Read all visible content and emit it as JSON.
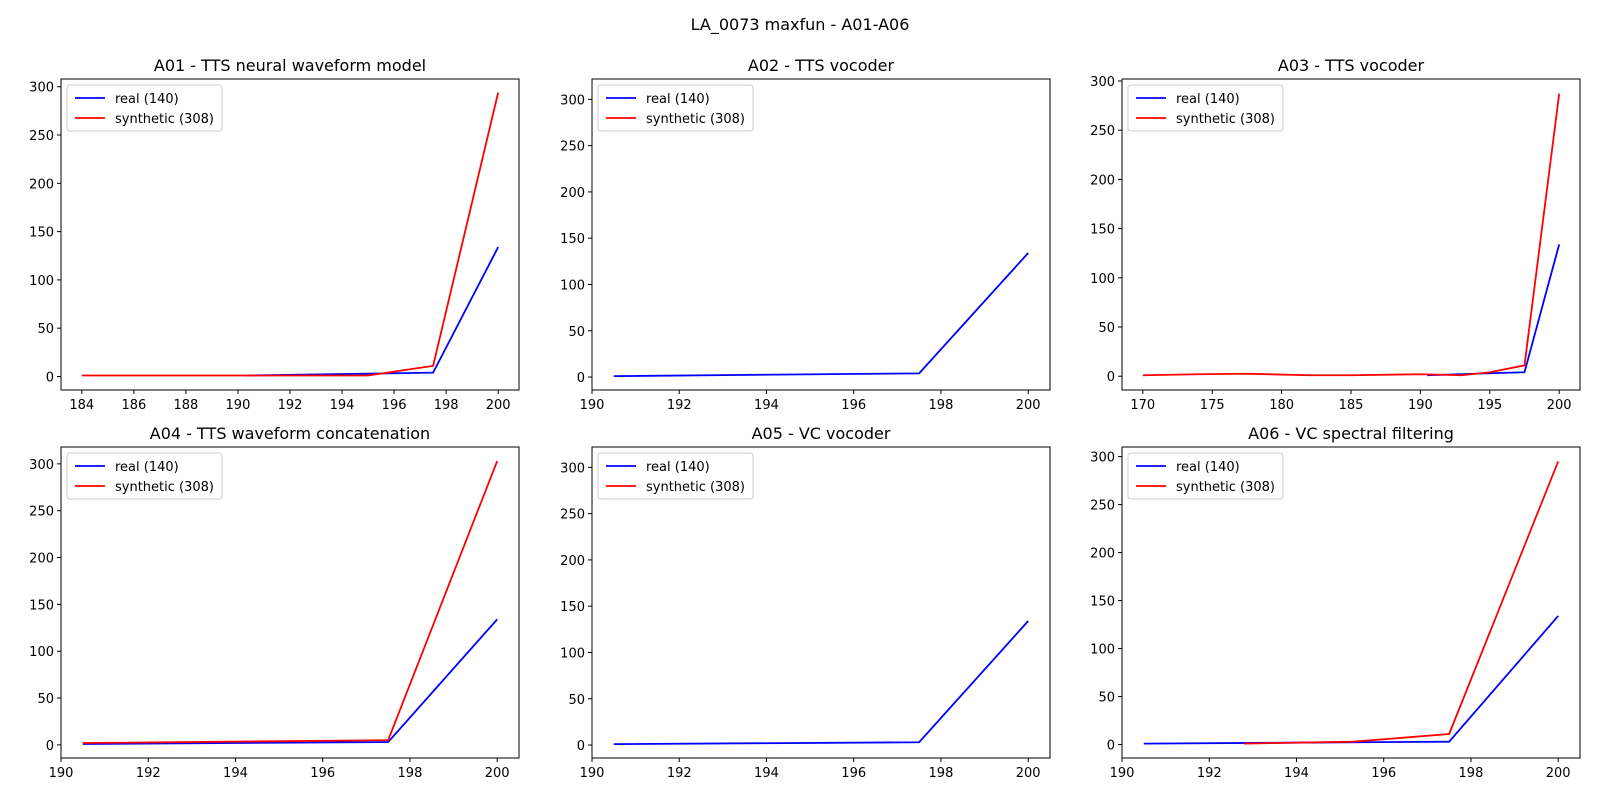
{
  "figure": {
    "suptitle": "LA_0073 maxfun - A01-A06"
  },
  "colors": {
    "real": "#0000ff",
    "synthetic": "#ff0000",
    "axis": "#000000",
    "legend_border": "#cccccc",
    "background": "#ffffff"
  },
  "chart_data": [
    {
      "type": "line",
      "title": "A01 - TTS neural waveform model",
      "xlabel": "",
      "ylabel": "",
      "xlim": [
        183.2,
        200.8
      ],
      "ylim": [
        -14,
        308
      ],
      "xticks": [
        184,
        186,
        188,
        190,
        192,
        194,
        196,
        198,
        200
      ],
      "yticks": [
        0,
        50,
        100,
        150,
        200,
        250,
        300
      ],
      "grid": false,
      "legend": "top-left",
      "series": [
        {
          "name": "real (140)",
          "color": "#0000ff",
          "x": [
            190.3,
            195.3,
            197.5,
            200
          ],
          "y": [
            1,
            3,
            4,
            134
          ]
        },
        {
          "name": "synthetic (308)",
          "color": "#ff0000",
          "x": [
            184,
            190,
            195,
            197.5,
            200
          ],
          "y": [
            1,
            1,
            1,
            11,
            294
          ]
        }
      ]
    },
    {
      "type": "line",
      "title": "A02 - TTS vocoder",
      "xlabel": "",
      "ylabel": "",
      "xlim": [
        190,
        200.5
      ],
      "ylim": [
        -14,
        322
      ],
      "xticks": [
        190,
        192,
        194,
        196,
        198,
        200
      ],
      "yticks": [
        0,
        50,
        100,
        150,
        200,
        250,
        300
      ],
      "grid": false,
      "legend": "top-left",
      "series": [
        {
          "name": "real (140)",
          "color": "#0000ff",
          "x": [
            190.5,
            197.5,
            200
          ],
          "y": [
            1,
            4,
            134
          ]
        },
        {
          "name": "synthetic (308)",
          "color": "#ff0000",
          "x": [],
          "y": []
        }
      ]
    },
    {
      "type": "line",
      "title": "A03 - TTS vocoder",
      "xlabel": "",
      "ylabel": "",
      "xlim": [
        168.5,
        201.5
      ],
      "ylim": [
        -14,
        302
      ],
      "xticks": [
        170,
        175,
        180,
        185,
        190,
        195,
        200
      ],
      "yticks": [
        0,
        50,
        100,
        150,
        200,
        250,
        300
      ],
      "grid": false,
      "legend": "top-left",
      "series": [
        {
          "name": "real (140)",
          "color": "#0000ff",
          "x": [
            190.5,
            195,
            197.5,
            200
          ],
          "y": [
            1,
            3,
            4,
            134
          ]
        },
        {
          "name": "synthetic (308)",
          "color": "#ff0000",
          "x": [
            170,
            174,
            177.5,
            182,
            185,
            190,
            193,
            195,
            197.5,
            200
          ],
          "y": [
            1,
            2,
            2.5,
            1,
            1,
            2,
            1,
            4,
            11,
            287
          ]
        }
      ]
    },
    {
      "type": "line",
      "title": "A04 - TTS waveform concatenation",
      "xlabel": "",
      "ylabel": "",
      "xlim": [
        190,
        200.5
      ],
      "ylim": [
        -14,
        318
      ],
      "xticks": [
        190,
        192,
        194,
        196,
        198,
        200
      ],
      "yticks": [
        0,
        50,
        100,
        150,
        200,
        250,
        300
      ],
      "grid": false,
      "legend": "top-left",
      "series": [
        {
          "name": "real (140)",
          "color": "#0000ff",
          "x": [
            190.5,
            197.5,
            200
          ],
          "y": [
            1,
            3,
            134
          ]
        },
        {
          "name": "synthetic (308)",
          "color": "#ff0000",
          "x": [
            190.5,
            197.5,
            200
          ],
          "y": [
            2,
            5,
            303
          ]
        }
      ]
    },
    {
      "type": "line",
      "title": "A05 - VC vocoder",
      "xlabel": "",
      "ylabel": "",
      "xlim": [
        190,
        200.5
      ],
      "ylim": [
        -14,
        322
      ],
      "xticks": [
        190,
        192,
        194,
        196,
        198,
        200
      ],
      "yticks": [
        0,
        50,
        100,
        150,
        200,
        250,
        300
      ],
      "grid": false,
      "legend": "top-left",
      "series": [
        {
          "name": "real (140)",
          "color": "#0000ff",
          "x": [
            190.5,
            197.5,
            200
          ],
          "y": [
            1,
            3,
            134
          ]
        },
        {
          "name": "synthetic (308)",
          "color": "#ff0000",
          "x": [],
          "y": []
        }
      ]
    },
    {
      "type": "line",
      "title": "A06 - VC spectral filtering",
      "xlabel": "",
      "ylabel": "",
      "xlim": [
        190,
        200.5
      ],
      "ylim": [
        -14,
        310
      ],
      "xticks": [
        190,
        192,
        194,
        196,
        198,
        200
      ],
      "yticks": [
        0,
        50,
        100,
        150,
        200,
        250,
        300
      ],
      "grid": false,
      "legend": "top-left",
      "series": [
        {
          "name": "real (140)",
          "color": "#0000ff",
          "x": [
            190.5,
            197.5,
            200
          ],
          "y": [
            1,
            3,
            134
          ]
        },
        {
          "name": "synthetic (308)",
          "color": "#ff0000",
          "x": [
            192.8,
            195.3,
            197.5,
            200
          ],
          "y": [
            1,
            3,
            11,
            295
          ]
        }
      ]
    }
  ]
}
